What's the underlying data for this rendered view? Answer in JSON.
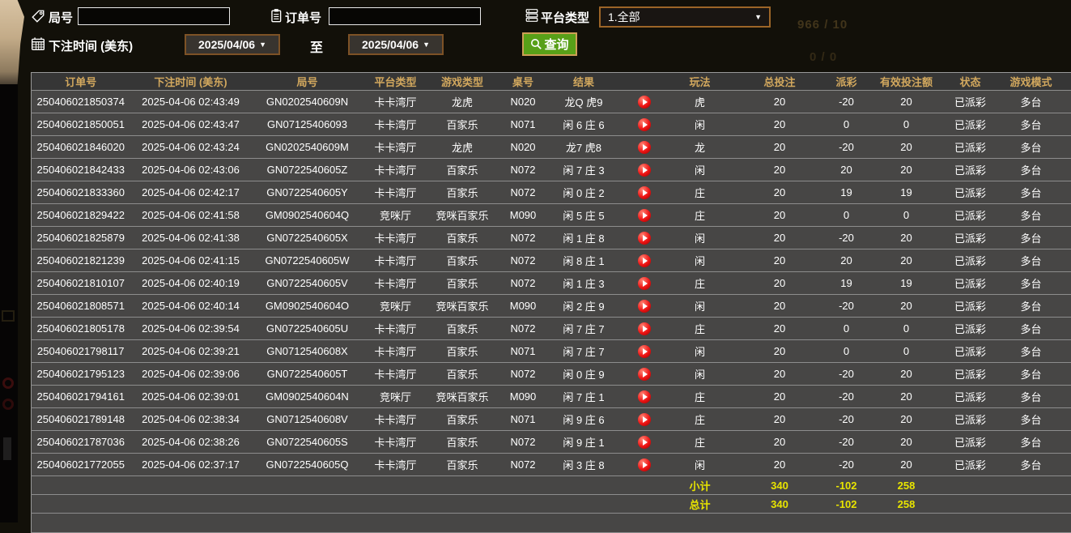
{
  "filters": {
    "round_label": "局号",
    "round_value": "",
    "order_label": "订单号",
    "order_value": "",
    "platform_label": "平台类型",
    "platform_value": "1.全部",
    "time_label": "下注时间 (美东)",
    "date_from": "2025/04/06",
    "to_label": "至",
    "date_to": "2025/04/06",
    "search_label": "查询"
  },
  "ghost_underlay": {
    "line1": "966 / 10",
    "line2": "0 / 0"
  },
  "table": {
    "columns": [
      "订单号",
      "下注时间 (美东)",
      "局号",
      "平台类型",
      "游戏类型",
      "桌号",
      "结果",
      "",
      "玩法",
      "总投注",
      "派彩",
      "有效投注额",
      "状态",
      "游戏模式"
    ],
    "rows": [
      {
        "order": "250406021850374",
        "time": "2025-04-06 02:43:49",
        "round": "GN0202540609N",
        "platform": "卡卡湾厅",
        "game": "龙虎",
        "table_no": "N020",
        "result": "龙Q 虎9",
        "play_type": "虎",
        "bet": "20",
        "payout": "-20",
        "valid": "20",
        "status": "已派彩",
        "mode": "多台"
      },
      {
        "order": "250406021850051",
        "time": "2025-04-06 02:43:47",
        "round": "GN07125406093",
        "platform": "卡卡湾厅",
        "game": "百家乐",
        "table_no": "N071",
        "result": "闲 6 庄 6",
        "play_type": "闲",
        "bet": "20",
        "payout": "0",
        "valid": "0",
        "status": "已派彩",
        "mode": "多台"
      },
      {
        "order": "250406021846020",
        "time": "2025-04-06 02:43:24",
        "round": "GN0202540609M",
        "platform": "卡卡湾厅",
        "game": "龙虎",
        "table_no": "N020",
        "result": "龙7 虎8",
        "play_type": "龙",
        "bet": "20",
        "payout": "-20",
        "valid": "20",
        "status": "已派彩",
        "mode": "多台"
      },
      {
        "order": "250406021842433",
        "time": "2025-04-06 02:43:06",
        "round": "GN0722540605Z",
        "platform": "卡卡湾厅",
        "game": "百家乐",
        "table_no": "N072",
        "result": "闲 7 庄 3",
        "play_type": "闲",
        "bet": "20",
        "payout": "20",
        "valid": "20",
        "status": "已派彩",
        "mode": "多台"
      },
      {
        "order": "250406021833360",
        "time": "2025-04-06 02:42:17",
        "round": "GN0722540605Y",
        "platform": "卡卡湾厅",
        "game": "百家乐",
        "table_no": "N072",
        "result": "闲 0 庄 2",
        "play_type": "庄",
        "bet": "20",
        "payout": "19",
        "valid": "19",
        "status": "已派彩",
        "mode": "多台"
      },
      {
        "order": "250406021829422",
        "time": "2025-04-06 02:41:58",
        "round": "GM0902540604Q",
        "platform": "竞咪厅",
        "game": "竞咪百家乐",
        "table_no": "M090",
        "result": "闲 5 庄 5",
        "play_type": "庄",
        "bet": "20",
        "payout": "0",
        "valid": "0",
        "status": "已派彩",
        "mode": "多台"
      },
      {
        "order": "250406021825879",
        "time": "2025-04-06 02:41:38",
        "round": "GN0722540605X",
        "platform": "卡卡湾厅",
        "game": "百家乐",
        "table_no": "N072",
        "result": "闲 1 庄 8",
        "play_type": "闲",
        "bet": "20",
        "payout": "-20",
        "valid": "20",
        "status": "已派彩",
        "mode": "多台"
      },
      {
        "order": "250406021821239",
        "time": "2025-04-06 02:41:15",
        "round": "GN0722540605W",
        "platform": "卡卡湾厅",
        "game": "百家乐",
        "table_no": "N072",
        "result": "闲 8 庄 1",
        "play_type": "闲",
        "bet": "20",
        "payout": "20",
        "valid": "20",
        "status": "已派彩",
        "mode": "多台"
      },
      {
        "order": "250406021810107",
        "time": "2025-04-06 02:40:19",
        "round": "GN0722540605V",
        "platform": "卡卡湾厅",
        "game": "百家乐",
        "table_no": "N072",
        "result": "闲 1 庄 3",
        "play_type": "庄",
        "bet": "20",
        "payout": "19",
        "valid": "19",
        "status": "已派彩",
        "mode": "多台"
      },
      {
        "order": "250406021808571",
        "time": "2025-04-06 02:40:14",
        "round": "GM0902540604O",
        "platform": "竞咪厅",
        "game": "竞咪百家乐",
        "table_no": "M090",
        "result": "闲 2 庄 9",
        "play_type": "闲",
        "bet": "20",
        "payout": "-20",
        "valid": "20",
        "status": "已派彩",
        "mode": "多台"
      },
      {
        "order": "250406021805178",
        "time": "2025-04-06 02:39:54",
        "round": "GN0722540605U",
        "platform": "卡卡湾厅",
        "game": "百家乐",
        "table_no": "N072",
        "result": "闲 7 庄 7",
        "play_type": "庄",
        "bet": "20",
        "payout": "0",
        "valid": "0",
        "status": "已派彩",
        "mode": "多台"
      },
      {
        "order": "250406021798117",
        "time": "2025-04-06 02:39:21",
        "round": "GN0712540608X",
        "platform": "卡卡湾厅",
        "game": "百家乐",
        "table_no": "N071",
        "result": "闲 7 庄 7",
        "play_type": "闲",
        "bet": "20",
        "payout": "0",
        "valid": "0",
        "status": "已派彩",
        "mode": "多台"
      },
      {
        "order": "250406021795123",
        "time": "2025-04-06 02:39:06",
        "round": "GN0722540605T",
        "platform": "卡卡湾厅",
        "game": "百家乐",
        "table_no": "N072",
        "result": "闲 0 庄 9",
        "play_type": "闲",
        "bet": "20",
        "payout": "-20",
        "valid": "20",
        "status": "已派彩",
        "mode": "多台"
      },
      {
        "order": "250406021794161",
        "time": "2025-04-06 02:39:01",
        "round": "GM0902540604N",
        "platform": "竞咪厅",
        "game": "竞咪百家乐",
        "table_no": "M090",
        "result": "闲 7 庄 1",
        "play_type": "庄",
        "bet": "20",
        "payout": "-20",
        "valid": "20",
        "status": "已派彩",
        "mode": "多台"
      },
      {
        "order": "250406021789148",
        "time": "2025-04-06 02:38:34",
        "round": "GN0712540608V",
        "platform": "卡卡湾厅",
        "game": "百家乐",
        "table_no": "N071",
        "result": "闲 9 庄 6",
        "play_type": "庄",
        "bet": "20",
        "payout": "-20",
        "valid": "20",
        "status": "已派彩",
        "mode": "多台"
      },
      {
        "order": "250406021787036",
        "time": "2025-04-06 02:38:26",
        "round": "GN0722540605S",
        "platform": "卡卡湾厅",
        "game": "百家乐",
        "table_no": "N072",
        "result": "闲 9 庄 1",
        "play_type": "庄",
        "bet": "20",
        "payout": "-20",
        "valid": "20",
        "status": "已派彩",
        "mode": "多台"
      },
      {
        "order": "250406021772055",
        "time": "2025-04-06 02:37:17",
        "round": "GN0722540605Q",
        "platform": "卡卡湾厅",
        "game": "百家乐",
        "table_no": "N072",
        "result": "闲 3 庄 8",
        "play_type": "闲",
        "bet": "20",
        "payout": "-20",
        "valid": "20",
        "status": "已派彩",
        "mode": "多台"
      }
    ],
    "subtotal": {
      "label": "小计",
      "bet": "340",
      "payout": "-102",
      "valid": "258"
    },
    "total": {
      "label": "总计",
      "bet": "340",
      "payout": "-102",
      "valid": "258"
    }
  },
  "colors": {
    "header_gold": "#d2a85e",
    "win_red": "#c41236",
    "loss_green": "#2fd32f",
    "status_green": "#2ee52e",
    "total_yellow": "#e8e400",
    "button_green": "#58a018",
    "border_brown": "#9c6527",
    "row_bg": "#474645",
    "header_bg": "#363636"
  }
}
